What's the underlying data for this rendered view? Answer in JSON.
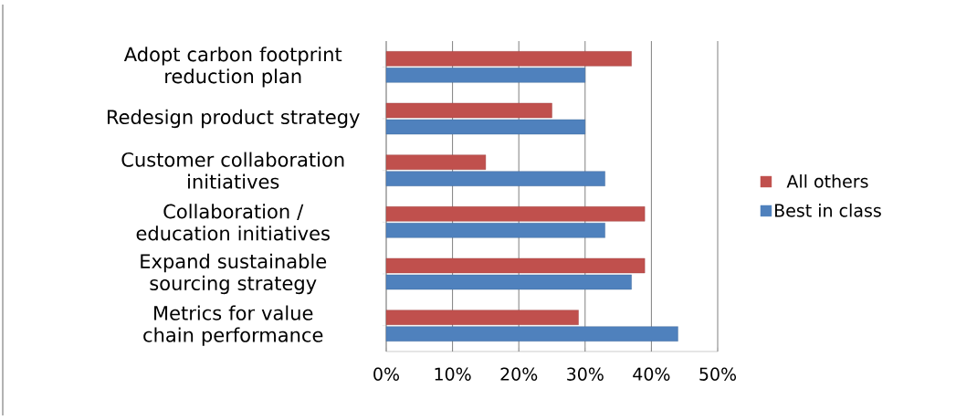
{
  "chart_data": {
    "type": "bar",
    "orientation": "horizontal",
    "categories": [
      "Adopt carbon footprint reduction plan",
      "Redesign product strategy",
      "Customer collaboration initiatives",
      "Collaboration / education initiatives",
      "Expand sustainable sourcing strategy",
      "Metrics for value chain performance"
    ],
    "series": [
      {
        "name": "All others",
        "color": "#c0504d",
        "values": [
          37,
          25,
          15,
          39,
          39,
          29
        ]
      },
      {
        "name": "Best in class",
        "color": "#4f81bd",
        "values": [
          30,
          30,
          33,
          33,
          37,
          44
        ]
      }
    ],
    "xlim": [
      0,
      50
    ],
    "xticks": [
      {
        "value": 0,
        "label": "0%"
      },
      {
        "value": 10,
        "label": "10%"
      },
      {
        "value": 20,
        "label": "20%"
      },
      {
        "value": 30,
        "label": "30%"
      },
      {
        "value": 40,
        "label": "40%"
      },
      {
        "value": 50,
        "label": "50%"
      }
    ],
    "grid": "x",
    "legend": "right"
  }
}
